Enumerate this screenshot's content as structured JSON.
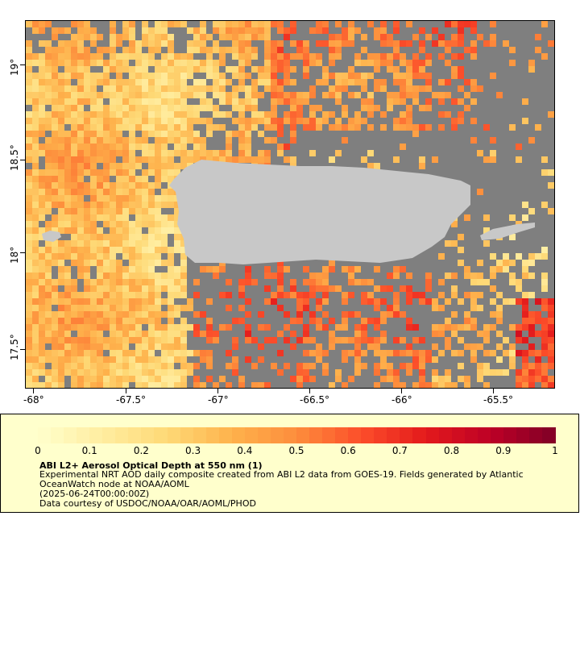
{
  "map": {
    "x_ticks": [
      "-68°",
      "-67.5°",
      "-67°",
      "-66.5°",
      "-66°",
      "-65.5°"
    ],
    "y_ticks": [
      "17.5°",
      "18°",
      "18.5°",
      "19°"
    ],
    "colors": {
      "no_data": "#7f7f7f",
      "land": "#c8c8c8"
    }
  },
  "legend": {
    "colorbar_labels": [
      "0",
      "0.1",
      "0.2",
      "0.3",
      "0.4",
      "0.5",
      "0.6",
      "0.7",
      "0.8",
      "0.9",
      "1"
    ],
    "colormap": [
      "#ffffcc",
      "#ffeda0",
      "#fed976",
      "#feb24c",
      "#fd8d3c",
      "#fc4e2a",
      "#e31a1c",
      "#bd0026",
      "#800026"
    ],
    "title": "ABI L2+ Aerosol Optical Depth at 550 nm (1)",
    "line1": "Experimental NRT AOD daily composite created from ABI L2 data from GOES-19. Fields generated by Atlantic",
    "line2": "OceanWatch node at NOAA/AOML",
    "line3": "(2025-06-24T00:00:00Z)",
    "line4": "Data courtesy of USDOC/NOAA/OAR/AOML/PHOD"
  }
}
